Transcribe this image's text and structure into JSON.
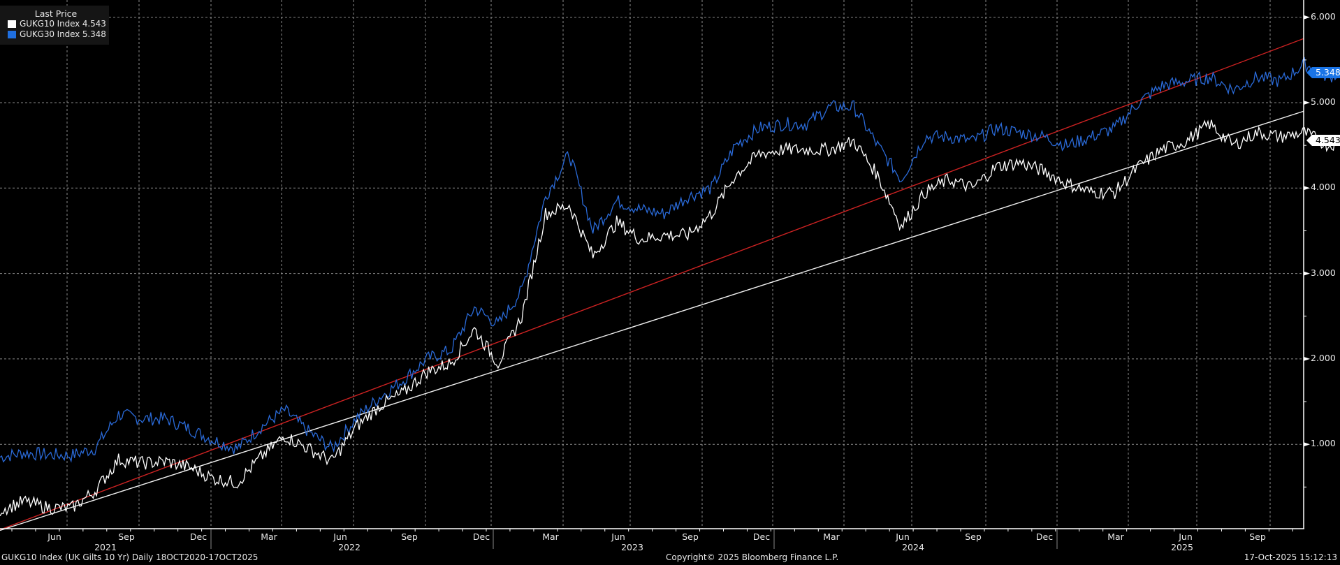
{
  "legend": {
    "title": "Last Price",
    "items": [
      {
        "label": "GUKG10 Index 4.543",
        "color": "#ffffff"
      },
      {
        "label": "GUKG30 Index 5.348",
        "color": "#1f6fe0"
      }
    ]
  },
  "price_tags": {
    "gukg30": {
      "value": "5.348",
      "bg": "#1a74e6",
      "fg": "#ffffff"
    },
    "gukg10": {
      "value": "4.543",
      "bg": "#ffffff",
      "fg": "#000000"
    }
  },
  "y_axis": {
    "ticks": [
      "6.000",
      "5.000",
      "4.000",
      "3.000",
      "2.000",
      "1.000"
    ]
  },
  "x_axis": {
    "months": [
      "Jun",
      "Sep",
      "Dec",
      "Mar",
      "Jun",
      "Sep",
      "Dec",
      "Mar",
      "Jun",
      "Sep",
      "Dec",
      "Mar",
      "Jun",
      "Sep",
      "Dec",
      "Mar",
      "Jun",
      "Sep"
    ],
    "years": [
      "2021",
      "2022",
      "2023",
      "2024",
      "2025"
    ]
  },
  "footer": {
    "left": "GUKG10 Index (UK Gilts 10 Yr) Daily 18OCT2020-17OCT2025",
    "center": "Copyright© 2025 Bloomberg Finance L.P.",
    "right": "17-Oct-2025 15:12:13"
  },
  "chart_data": {
    "type": "line",
    "title": "GUKG10 Index (UK Gilts 10 Yr) Daily 18OCT2020-17OCT2025",
    "xlabel": "",
    "ylabel": "",
    "ylim": [
      0,
      6.3
    ],
    "y_ticks": [
      1,
      2,
      3,
      4,
      5,
      6
    ],
    "grid": true,
    "legend_position": "top-left",
    "x": [
      "2020-10",
      "2020-11",
      "2020-12",
      "2021-01",
      "2021-02",
      "2021-03",
      "2021-04",
      "2021-05",
      "2021-06",
      "2021-07",
      "2021-08",
      "2021-09",
      "2021-10",
      "2021-11",
      "2021-12",
      "2022-01",
      "2022-02",
      "2022-03",
      "2022-04",
      "2022-05",
      "2022-06",
      "2022-07",
      "2022-08",
      "2022-09",
      "2022-10",
      "2022-11",
      "2022-12",
      "2023-01",
      "2023-02",
      "2023-03",
      "2023-04",
      "2023-05",
      "2023-06",
      "2023-07",
      "2023-08",
      "2023-09",
      "2023-10",
      "2023-11",
      "2023-12",
      "2024-01",
      "2024-02",
      "2024-03",
      "2024-04",
      "2024-05",
      "2024-06",
      "2024-07",
      "2024-08",
      "2024-09",
      "2024-10",
      "2024-11",
      "2024-12",
      "2025-01",
      "2025-02",
      "2025-03",
      "2025-04",
      "2025-05",
      "2025-06",
      "2025-07",
      "2025-08",
      "2025-09",
      "2025-10"
    ],
    "series": [
      {
        "name": "GUKG10 Index",
        "color": "#ffffff",
        "last": 4.543,
        "values": [
          0.23,
          0.33,
          0.26,
          0.25,
          0.45,
          0.82,
          0.78,
          0.8,
          0.73,
          0.6,
          0.55,
          0.85,
          1.1,
          0.95,
          0.8,
          1.2,
          1.45,
          1.6,
          1.85,
          1.95,
          2.35,
          1.95,
          2.5,
          3.7,
          3.8,
          3.2,
          3.6,
          3.4,
          3.45,
          3.45,
          3.7,
          4.15,
          4.4,
          4.45,
          4.45,
          4.45,
          4.55,
          4.15,
          3.55,
          3.95,
          4.1,
          4.0,
          4.25,
          4.3,
          4.2,
          4.05,
          3.95,
          3.95,
          4.25,
          4.45,
          4.55,
          4.75,
          4.5,
          4.65,
          4.6,
          4.65,
          4.5,
          4.6,
          4.7,
          4.7,
          4.543
        ]
      },
      {
        "name": "GUKG30 Index",
        "color": "#1f6fe0",
        "last": 5.348,
        "values": [
          0.85,
          0.9,
          0.88,
          0.87,
          0.95,
          1.35,
          1.3,
          1.3,
          1.18,
          1.05,
          0.95,
          1.2,
          1.4,
          1.15,
          0.95,
          1.3,
          1.55,
          1.75,
          2.0,
          2.1,
          2.6,
          2.4,
          2.8,
          3.9,
          4.4,
          3.5,
          3.85,
          3.75,
          3.7,
          3.9,
          4.0,
          4.5,
          4.7,
          4.75,
          4.75,
          4.95,
          4.95,
          4.5,
          4.1,
          4.6,
          4.6,
          4.55,
          4.7,
          4.65,
          4.6,
          4.5,
          4.6,
          4.7,
          5.0,
          5.2,
          5.25,
          5.3,
          5.15,
          5.3,
          5.25,
          5.45,
          5.3,
          5.4,
          5.55,
          5.5,
          5.348
        ]
      }
    ],
    "trendlines": [
      {
        "name": "red-trendline",
        "color": "#cc2222",
        "from": {
          "x": "2020-10",
          "y": 0.0
        },
        "to": {
          "x": "2025-10",
          "y": 5.75
        }
      },
      {
        "name": "white-trendline",
        "color": "#ffffff",
        "from": {
          "x": "2020-10",
          "y": 0.0
        },
        "to": {
          "x": "2025-10",
          "y": 4.9
        }
      }
    ]
  }
}
